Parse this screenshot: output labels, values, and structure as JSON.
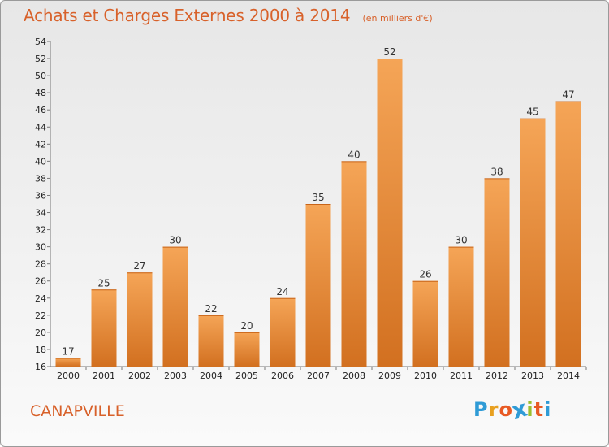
{
  "header": {
    "title": "Achats et Charges Externes 2000 à 2014",
    "subtitle": "(en milliers d'€)"
  },
  "footer": {
    "town": "CANAPVILLE",
    "logo_letters": [
      "P",
      "r",
      "o",
      "x",
      "i",
      "t",
      "i"
    ],
    "logo_colors": [
      "#2f9bd6",
      "#e8a020",
      "#e85a24",
      "#2f9bd6",
      "#9bbf2e",
      "#e85a24",
      "#2f9bd6"
    ]
  },
  "colors": {
    "bar_top": "#f5a557",
    "bar_bottom": "#d27020",
    "text_accent": "#d8612a"
  },
  "chart_data": {
    "type": "bar",
    "categories": [
      "2000",
      "2001",
      "2002",
      "2003",
      "2004",
      "2005",
      "2006",
      "2007",
      "2008",
      "2009",
      "2010",
      "2011",
      "2012",
      "2013",
      "2014"
    ],
    "values": [
      17,
      25,
      27,
      30,
      22,
      20,
      24,
      35,
      40,
      52,
      26,
      30,
      38,
      45,
      47
    ],
    "ylim": [
      16,
      54
    ],
    "yticks": [
      16,
      18,
      20,
      22,
      24,
      26,
      28,
      30,
      32,
      34,
      36,
      38,
      40,
      42,
      44,
      46,
      48,
      50,
      52,
      54
    ],
    "grid": false,
    "data_labels": true
  }
}
